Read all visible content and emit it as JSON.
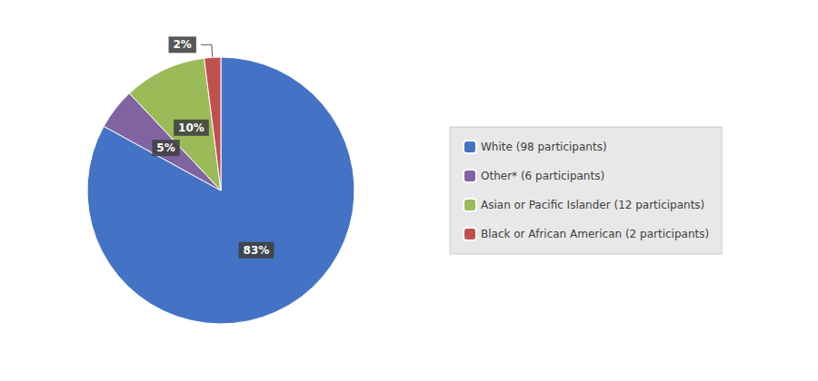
{
  "chart_data": {
    "type": "pie",
    "categories": [
      "White (98 participants)",
      "Other* (6 participants)",
      "Asian or Pacific Islander (12 participants)",
      "Black or African American (2 participants)"
    ],
    "values": [
      83,
      5,
      10,
      2
    ],
    "value_labels": [
      "83%",
      "5%",
      "10%",
      "2%"
    ],
    "colors": [
      "#4472C4",
      "#8064A2",
      "#9BBB59",
      "#C0504D"
    ],
    "data_labels": true,
    "legend": "right"
  }
}
